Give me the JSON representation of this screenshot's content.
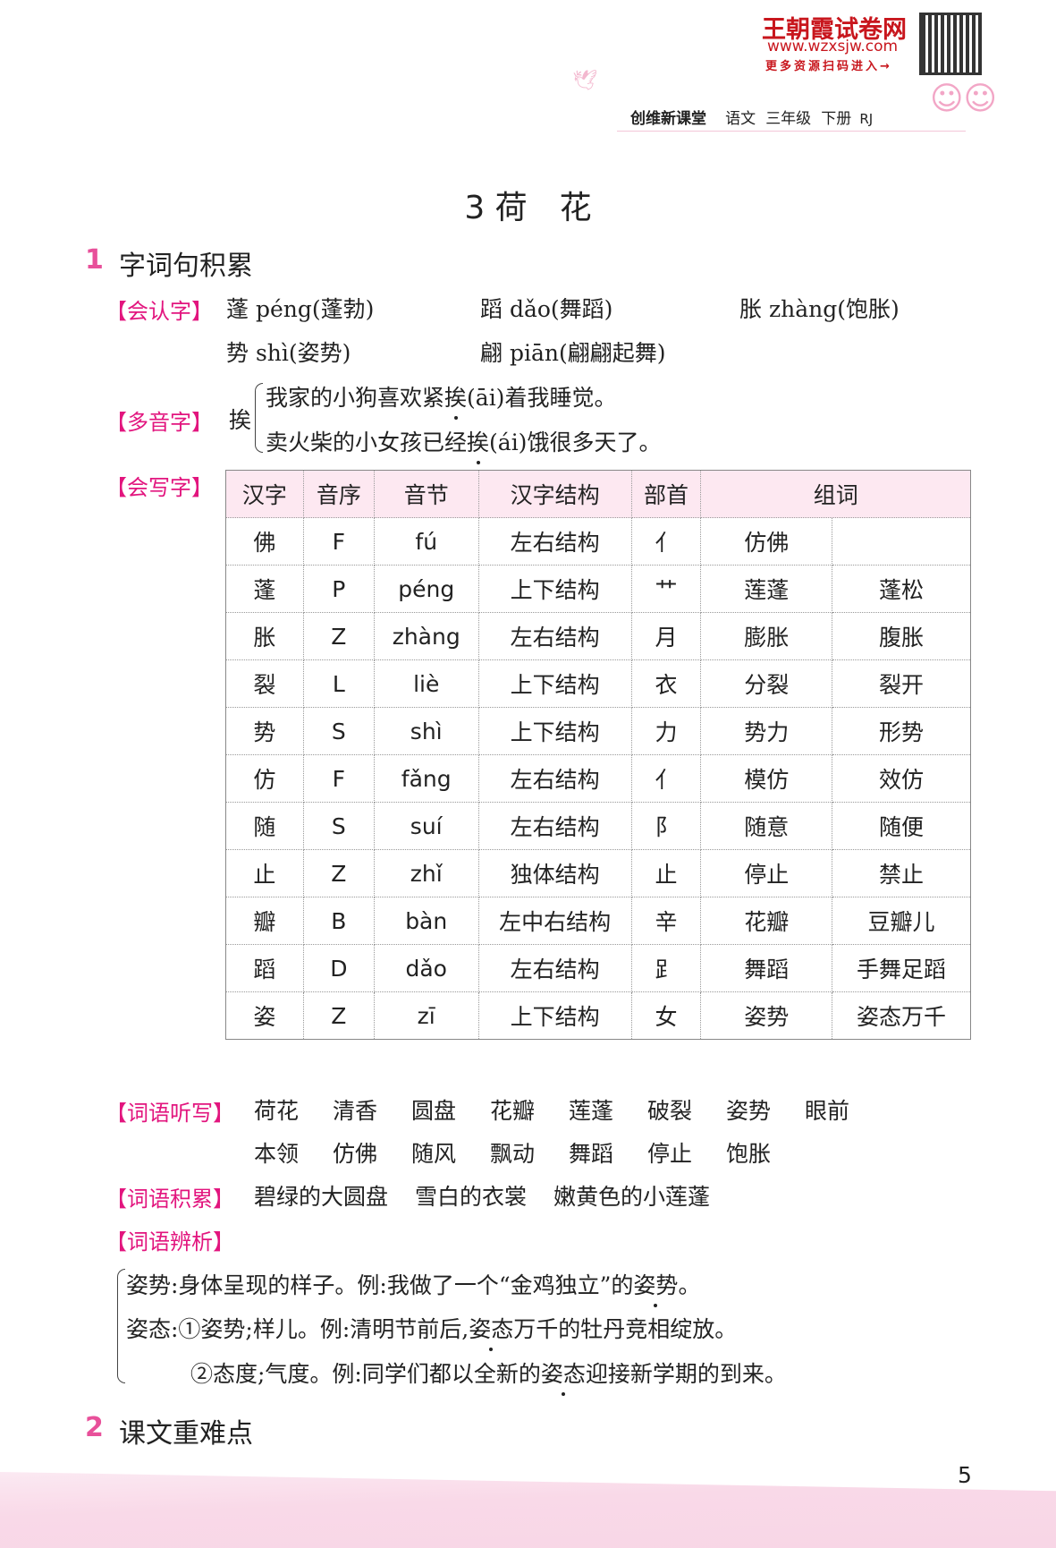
{
  "header": {
    "brand": "王朝霞试卷网",
    "url": "www.wzxsjw.com",
    "more": "更多资源扫码进入→",
    "series": "创维新课堂",
    "subject": "语文",
    "grade": "三年级",
    "volume": "下册",
    "edition": "RJ"
  },
  "title": "3 荷　花",
  "section1": {
    "num": "1",
    "title": "字词句积累"
  },
  "recognize": {
    "label": "【会认字】",
    "items": [
      "蓬 péng(蓬勃)",
      "蹈 dǎo(舞蹈)",
      "胀 zhàng(饱胀)",
      "势 shì(姿势)",
      "翩 piān(翩翩起舞)"
    ]
  },
  "polyphone": {
    "label": "【多音字】",
    "char": "挨",
    "line1": {
      "before": "我家的小狗喜欢紧",
      "dotted": "挨",
      "after": "(āi)着我睡觉。"
    },
    "line2": {
      "before": "卖火柴的小女孩已经",
      "dotted": "挨",
      "after": "(ái)饿很多天了。"
    }
  },
  "write": {
    "label": "【会写字】",
    "headers": [
      "汉字",
      "音序",
      "音节",
      "汉字结构",
      "部首",
      "组词"
    ],
    "rows": [
      [
        "佛",
        "F",
        "fú",
        "左右结构",
        "亻",
        "仿佛",
        ""
      ],
      [
        "蓬",
        "P",
        "péng",
        "上下结构",
        "艹",
        "莲蓬",
        "蓬松"
      ],
      [
        "胀",
        "Z",
        "zhàng",
        "左右结构",
        "月",
        "膨胀",
        "腹胀"
      ],
      [
        "裂",
        "L",
        "liè",
        "上下结构",
        "衣",
        "分裂",
        "裂开"
      ],
      [
        "势",
        "S",
        "shì",
        "上下结构",
        "力",
        "势力",
        "形势"
      ],
      [
        "仿",
        "F",
        "fǎng",
        "左右结构",
        "亻",
        "模仿",
        "效仿"
      ],
      [
        "随",
        "S",
        "suí",
        "左右结构",
        "阝",
        "随意",
        "随便"
      ],
      [
        "止",
        "Z",
        "zhǐ",
        "独体结构",
        "止",
        "停止",
        "禁止"
      ],
      [
        "瓣",
        "B",
        "bàn",
        "左中右结构",
        "辛",
        "花瓣",
        "豆瓣儿"
      ],
      [
        "蹈",
        "D",
        "dǎo",
        "左右结构",
        "⻊",
        "舞蹈",
        "手舞足蹈"
      ],
      [
        "姿",
        "Z",
        "zī",
        "上下结构",
        "女",
        "姿势",
        "姿态万千"
      ]
    ]
  },
  "dictation": {
    "label": "【词语听写】",
    "row1": [
      "荷花",
      "清香",
      "圆盘",
      "花瓣",
      "莲蓬",
      "破裂",
      "姿势",
      "眼前"
    ],
    "row2": [
      "本领",
      "仿佛",
      "随风",
      "飘动",
      "舞蹈",
      "停止",
      "饱胀"
    ]
  },
  "accumulate": {
    "label": "【词语积累】",
    "items": [
      "碧绿的大圆盘",
      "雪白的衣裳",
      "嫩黄色的小莲蓬"
    ]
  },
  "analysis": {
    "label": "【词语辨析】",
    "line1": {
      "before": "姿势:身体呈现的样子。例:我做了一个“金鸡独立”的",
      "dotted": "姿势",
      "after": "。"
    },
    "line2": {
      "before": "姿态:①姿势;样儿。例:清明节前后,",
      "dotted": "姿态",
      "after": "万千的牡丹竞相绽放。"
    },
    "line3": {
      "before": "②态度;气度。例:同学们都以全新的",
      "dotted": "姿态",
      "after": "迎接新学期的到来。"
    }
  },
  "section2": {
    "num": "2",
    "title": "课文重难点"
  },
  "page_number": "5",
  "colors": {
    "accent": "#e2157e",
    "brand": "#c8161d",
    "table_header": "#fde8f1"
  }
}
